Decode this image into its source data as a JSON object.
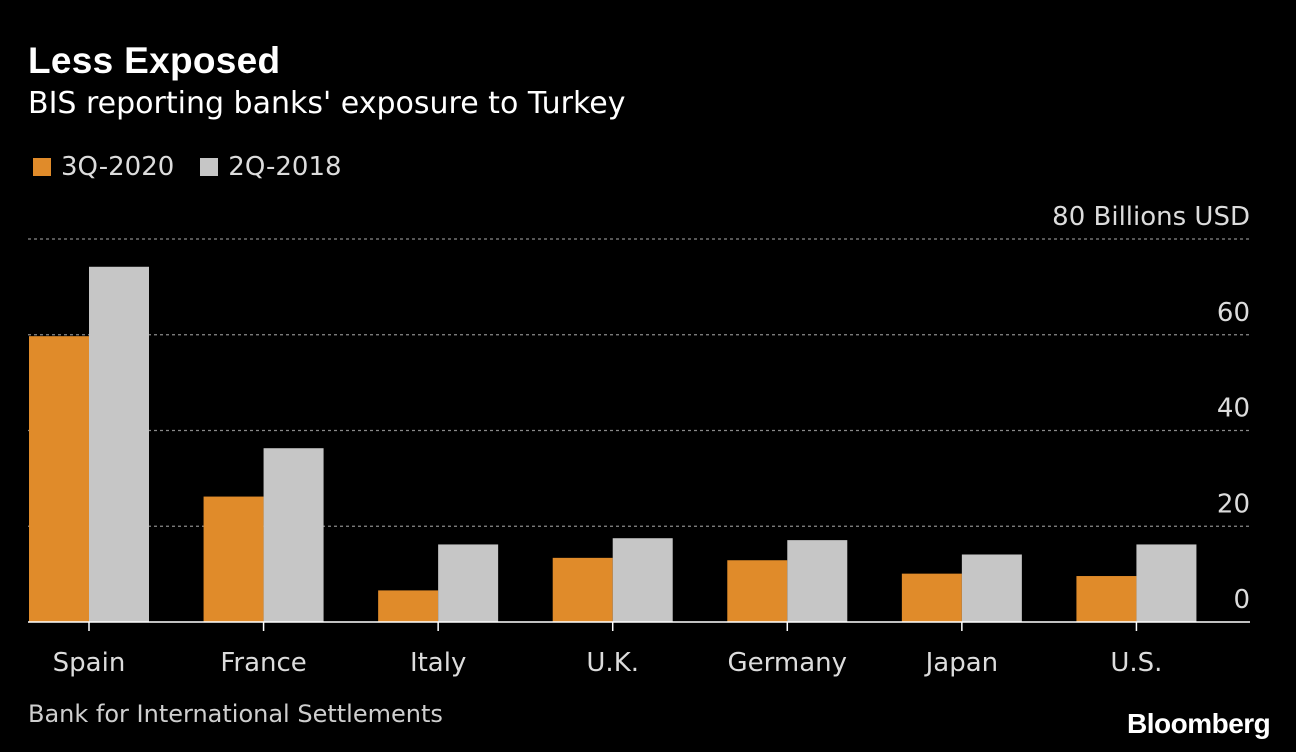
{
  "title": "Less Exposed",
  "subtitle": "BIS reporting banks' exposure to Turkey",
  "source": "Bank for International Settlements",
  "brand": "Bloomberg",
  "legend": [
    {
      "label": "3Q-2020",
      "color": "#e08b2a"
    },
    {
      "label": "2Q-2018",
      "color": "#c6c6c6"
    }
  ],
  "chart_data": {
    "type": "bar",
    "title": "Less Exposed",
    "subtitle": "BIS reporting banks' exposure to Turkey",
    "xlabel": "",
    "ylabel": "Billions USD",
    "unit_label": "80 Billions USD",
    "categories": [
      "Spain",
      "France",
      "Italy",
      "U.K.",
      "Germany",
      "Japan",
      "U.S."
    ],
    "series": [
      {
        "name": "3Q-2020",
        "color": "#e08b2a",
        "values": [
          59.7,
          26.2,
          6.6,
          13.4,
          12.9,
          10.1,
          9.6
        ]
      },
      {
        "name": "2Q-2018",
        "color": "#c6c6c6",
        "values": [
          74.2,
          36.3,
          16.2,
          17.5,
          17.1,
          14.1,
          16.2
        ]
      }
    ],
    "ylim": [
      0,
      80
    ],
    "yticks": [
      0,
      20,
      40,
      60,
      80
    ],
    "ytick_labels": [
      "0",
      "20",
      "40",
      "60",
      "80 Billions USD"
    ],
    "grid": true,
    "legend_position": "top-left"
  }
}
